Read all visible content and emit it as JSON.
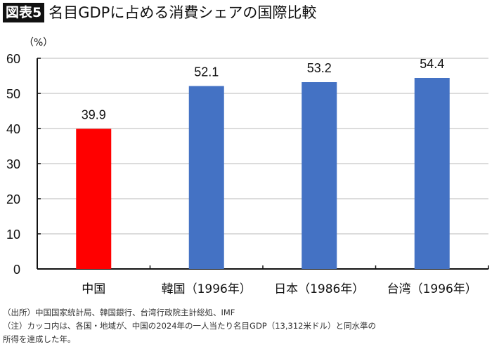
{
  "header": {
    "badge": "図表5",
    "title": "名目GDPに占める消費シェアの国際比較"
  },
  "chart_data": {
    "type": "bar",
    "title": "名目GDPに占める消費シェアの国際比較",
    "unit_label": "（%）",
    "categories": [
      "中国",
      "韓国（1996年）",
      "日本（1986年）",
      "台湾（1996年）"
    ],
    "values": [
      39.9,
      52.1,
      53.2,
      54.4
    ],
    "value_labels": [
      "39.9",
      "52.1",
      "53.2",
      "54.4"
    ],
    "colors": [
      "#ff0000",
      "#4472c4",
      "#4472c4",
      "#4472c4"
    ],
    "yticks": [
      0,
      10,
      20,
      30,
      40,
      50,
      60
    ],
    "ylim": [
      0,
      60
    ],
    "grid": true,
    "xlabel": "",
    "ylabel": "%"
  },
  "notes": {
    "source": "（出所）中国国家統計局、韓国銀行、台湾行政院主計総処、IMF",
    "note_line1": "（注）カッコ内は、各国・地域が、中国の2024年の一人当たり名目GDP（13,312米ドル）と同水準の",
    "note_line2": "所得を達成した年。"
  }
}
